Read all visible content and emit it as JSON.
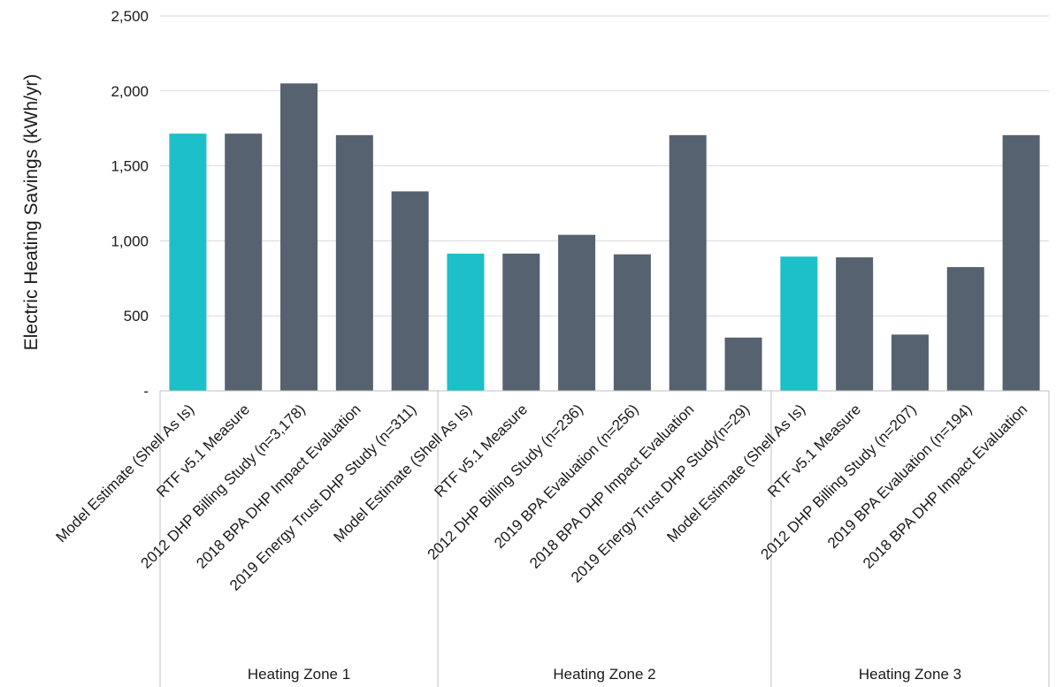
{
  "chart_data": {
    "type": "bar",
    "ylabel": "Electric Heating Savings (kWh/yr)",
    "ylim": [
      0,
      2500
    ],
    "yticks": [
      {
        "value": 0,
        "label": "-"
      },
      {
        "value": 500,
        "label": "500"
      },
      {
        "value": 1000,
        "label": "1,000"
      },
      {
        "value": 1500,
        "label": "1,500"
      },
      {
        "value": 2000,
        "label": "2,000"
      },
      {
        "value": 2500,
        "label": "2,500"
      }
    ],
    "grid": true,
    "legend": "none",
    "colors": {
      "model": "#1dbfc8",
      "study": "#56626f"
    },
    "groups": [
      {
        "name": "Heating Zone 1",
        "bars": [
          {
            "label": "Model Estimate (Shell As Is)",
            "value": 1715,
            "kind": "model"
          },
          {
            "label": "RTF v5.1 Measure",
            "value": 1715,
            "kind": "study"
          },
          {
            "label": "2012 DHP Billing Study (n=3,178)",
            "value": 2050,
            "kind": "study"
          },
          {
            "label": "2018 BPA DHP Impact Evaluation",
            "value": 1705,
            "kind": "study"
          },
          {
            "label": "2019 Energy Trust DHP Study (n=311)",
            "value": 1330,
            "kind": "study"
          }
        ]
      },
      {
        "name": "Heating Zone 2",
        "bars": [
          {
            "label": "Model Estimate (Shell As Is)",
            "value": 915,
            "kind": "model"
          },
          {
            "label": "RTF v5.1 Measure",
            "value": 915,
            "kind": "study"
          },
          {
            "label": "2012 DHP Billing Study (n=236)",
            "value": 1040,
            "kind": "study"
          },
          {
            "label": "2019 BPA Evaluation (n=256)",
            "value": 910,
            "kind": "study"
          },
          {
            "label": "2018 BPA DHP Impact Evaluation",
            "value": 1705,
            "kind": "study"
          },
          {
            "label": "2019 Energy Trust DHP Study(n=29)",
            "value": 355,
            "kind": "study"
          }
        ]
      },
      {
        "name": "Heating Zone 3",
        "bars": [
          {
            "label": "Model Estimate (Shell As Is)",
            "value": 895,
            "kind": "model"
          },
          {
            "label": "RTF v5.1 Measure",
            "value": 890,
            "kind": "study"
          },
          {
            "label": "2012 DHP Billing Study (n=207)",
            "value": 375,
            "kind": "study"
          },
          {
            "label": "2019 BPA Evaluation (n=194)",
            "value": 825,
            "kind": "study"
          },
          {
            "label": "2018 BPA DHP Impact Evaluation",
            "value": 1705,
            "kind": "study"
          }
        ]
      }
    ]
  }
}
